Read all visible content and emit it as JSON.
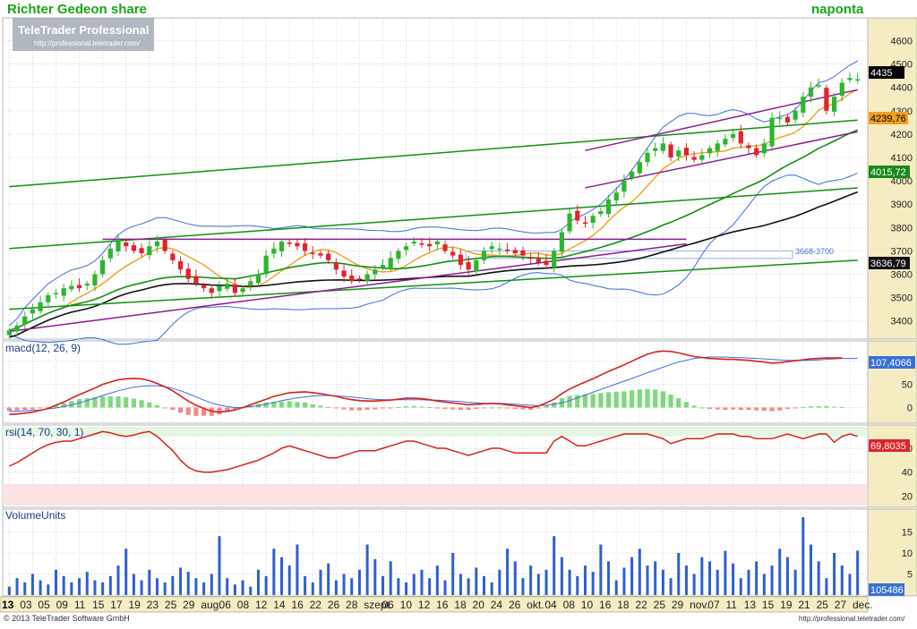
{
  "header": {
    "title": "Richter Gedeon share",
    "period": "naponta",
    "watermark_brand": "TeleTrader Professional",
    "watermark_url": "http://professional.teletrader.com/"
  },
  "footer": {
    "copyright": "© 2013 TeleTrader Software GmbH",
    "url": "http://professional.teletrader.com/"
  },
  "colors": {
    "bull": "#2db52d",
    "bear": "#e0242b",
    "channel_green": "#129012",
    "channel_purple": "#8a1d8f",
    "ma_orange": "#f0a020",
    "bollinger": "#3a6fd8",
    "macd_line": "#d81f1f",
    "signal_line": "#3a6fd8",
    "volume": "#2f5fd0",
    "axis_bg": "#f6ecc2"
  },
  "chart_data": [
    {
      "type": "candlestick",
      "title": "Richter Gedeon share",
      "ylim": [
        3330,
        4690
      ],
      "yticks": [
        3400,
        3500,
        3600,
        3700,
        3800,
        3900,
        4000,
        4100,
        4200,
        4300,
        4400,
        4500,
        4600
      ],
      "closes": [
        3360,
        3380,
        3420,
        3450,
        3480,
        3510,
        3520,
        3540,
        3550,
        3540,
        3560,
        3600,
        3660,
        3710,
        3740,
        3720,
        3700,
        3690,
        3720,
        3740,
        3700,
        3660,
        3620,
        3580,
        3560,
        3540,
        3520,
        3550,
        3560,
        3520,
        3540,
        3570,
        3600,
        3680,
        3710,
        3740,
        3730,
        3720,
        3700,
        3690,
        3680,
        3660,
        3620,
        3590,
        3570,
        3580,
        3600,
        3620,
        3640,
        3670,
        3700,
        3720,
        3740,
        3730,
        3720,
        3740,
        3700,
        3680,
        3640,
        3620,
        3660,
        3700,
        3720,
        3710,
        3700,
        3690,
        3680,
        3670,
        3650,
        3640,
        3700,
        3780,
        3860,
        3830,
        3820,
        3850,
        3870,
        3920,
        3950,
        4000,
        4040,
        4080,
        4120,
        4140,
        4160,
        4100,
        4130,
        4110,
        4090,
        4110,
        4140,
        4160,
        4180,
        4200,
        4160,
        4140,
        4110,
        4160,
        4270,
        4270,
        4250,
        4300,
        4360,
        4400,
        4410,
        4300,
        4360,
        4420,
        4440,
        4435
      ],
      "last_close_label": "4435",
      "bollinger_upper_label": "4239,76",
      "ma_label": "4015,72",
      "long_ma_label": "3636,79",
      "zone_label": "3668-3700",
      "zone": [
        3668,
        3700
      ]
    },
    {
      "type": "line",
      "title": "macd(12, 26, 9)",
      "ylim": [
        -30,
        140
      ],
      "yticks": [
        0,
        50,
        100
      ],
      "value_label": "107,4066",
      "macd": [
        -15,
        -14,
        -12,
        -10,
        -6,
        -2,
        5,
        12,
        20,
        28,
        35,
        42,
        50,
        55,
        60,
        62,
        63,
        62,
        58,
        52,
        45,
        36,
        25,
        14,
        5,
        -2,
        -8,
        -10,
        -8,
        -5,
        0,
        6,
        12,
        18,
        24,
        28,
        32,
        33,
        34,
        32,
        30,
        27,
        24,
        20,
        17,
        15,
        14,
        14,
        15,
        16,
        18,
        20,
        20,
        19,
        17,
        14,
        12,
        10,
        8,
        6,
        7,
        8,
        9,
        8,
        6,
        4,
        2,
        0,
        3,
        10,
        18,
        30,
        40,
        48,
        55,
        62,
        70,
        78,
        85,
        92,
        100,
        108,
        115,
        120,
        122,
        121,
        118,
        114,
        110,
        108,
        106,
        105,
        104,
        104,
        103,
        102,
        100,
        98,
        96,
        97,
        99,
        101,
        103,
        105,
        106,
        107,
        107,
        107
      ],
      "signal": [
        -8,
        -8,
        -7,
        -6,
        -5,
        -3,
        -1,
        2,
        6,
        10,
        15,
        20,
        26,
        31,
        36,
        40,
        44,
        46,
        47,
        47,
        45,
        41,
        36,
        30,
        23,
        16,
        10,
        5,
        2,
        0,
        0,
        2,
        4,
        7,
        11,
        15,
        18,
        21,
        23,
        25,
        26,
        26,
        25,
        24,
        23,
        21,
        19,
        18,
        17,
        17,
        17,
        17,
        17,
        17,
        16,
        16,
        15,
        14,
        13,
        11,
        10,
        9,
        9,
        9,
        8,
        7,
        6,
        5,
        4,
        5,
        7,
        10,
        15,
        21,
        27,
        33,
        39,
        45,
        51,
        57,
        63,
        69,
        75,
        81,
        87,
        93,
        98,
        102,
        106,
        108,
        109,
        109,
        109,
        108,
        108,
        107,
        106,
        105,
        104,
        103,
        102,
        102,
        102,
        102,
        103,
        104,
        105,
        106,
        106,
        106
      ]
    },
    {
      "type": "line",
      "title": "rsi(14, 70, 30, 1)",
      "ylim": [
        12,
        78
      ],
      "yticks": [
        20,
        40,
        60
      ],
      "bands": [
        [
          70,
          78
        ],
        [
          12,
          30
        ]
      ],
      "value_label": "69,8035",
      "values": [
        45,
        48,
        52,
        56,
        60,
        63,
        65,
        66,
        66,
        68,
        70,
        72,
        74,
        73,
        71,
        70,
        71,
        73,
        74,
        70,
        64,
        58,
        50,
        44,
        41,
        40,
        40,
        41,
        42,
        44,
        46,
        48,
        50,
        53,
        56,
        60,
        62,
        60,
        58,
        56,
        54,
        52,
        52,
        54,
        56,
        58,
        58,
        58,
        60,
        62,
        64,
        66,
        66,
        64,
        62,
        60,
        60,
        58,
        56,
        54,
        56,
        58,
        60,
        60,
        58,
        56,
        56,
        56,
        56,
        56,
        66,
        70,
        66,
        62,
        62,
        64,
        66,
        68,
        70,
        72,
        72,
        72,
        72,
        70,
        68,
        64,
        66,
        68,
        68,
        68,
        70,
        72,
        72,
        72,
        70,
        70,
        68,
        68,
        68,
        70,
        72,
        70,
        68,
        70,
        72,
        72,
        65,
        70,
        72,
        70
      ]
    },
    {
      "type": "bar",
      "title": "VolumeUnits",
      "ylim": [
        0,
        200000
      ],
      "yticks": [
        50000,
        100000,
        150000
      ],
      "ytick_labels": [
        "5",
        "10",
        "15"
      ],
      "value_label": "105486",
      "x_tick_labels": [
        "13",
        "03",
        "05",
        "09",
        "11",
        "15",
        "17",
        "19",
        "23",
        "25",
        "29",
        "aug.",
        "06",
        "08",
        "12",
        "14",
        "16",
        "22",
        "26",
        "28",
        "szept.",
        "06",
        "10",
        "12",
        "16",
        "18",
        "20",
        "24",
        "26",
        "okt.",
        "04",
        "08",
        "10",
        "16",
        "18",
        "22",
        "25",
        "29",
        "nov.",
        "07",
        "11",
        "13",
        "15",
        "19",
        "21",
        "25",
        "27",
        "dec."
      ],
      "values": [
        20000,
        40000,
        30000,
        50000,
        35000,
        25000,
        60000,
        45000,
        30000,
        40000,
        55000,
        35000,
        30000,
        45000,
        70000,
        110000,
        50000,
        35000,
        60000,
        40000,
        30000,
        45000,
        65000,
        55000,
        40000,
        30000,
        50000,
        140000,
        40000,
        25000,
        35000,
        20000,
        60000,
        45000,
        110000,
        90000,
        70000,
        120000,
        45000,
        30000,
        60000,
        75000,
        35000,
        50000,
        40000,
        60000,
        120000,
        85000,
        45000,
        80000,
        40000,
        30000,
        50000,
        60000,
        40000,
        70000,
        35000,
        100000,
        50000,
        40000,
        65000,
        45000,
        30000,
        60000,
        110000,
        80000,
        40000,
        70000,
        50000,
        60000,
        140000,
        90000,
        60000,
        45000,
        70000,
        55000,
        120000,
        80000,
        35000,
        65000,
        90000,
        110000,
        70000,
        80000,
        60000,
        40000,
        100000,
        70000,
        50000,
        90000,
        80000,
        60000,
        105000,
        75000,
        40000,
        60000,
        80000,
        50000,
        70000,
        110000,
        90000,
        60000,
        185000,
        120000,
        80000,
        40000,
        100000,
        70000,
        50000,
        105486
      ]
    }
  ]
}
